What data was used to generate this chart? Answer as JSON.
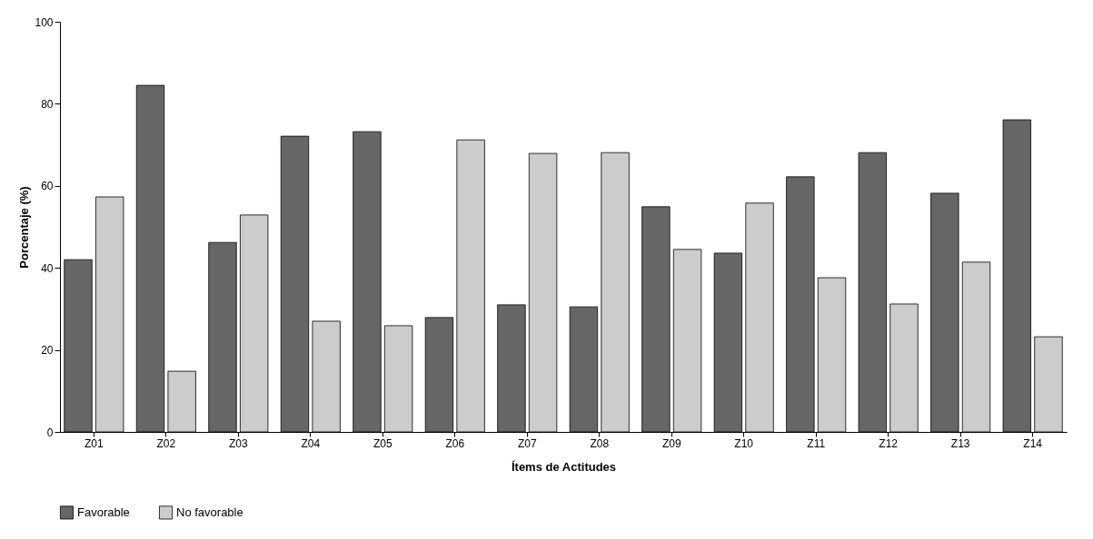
{
  "chart_data": {
    "type": "bar",
    "xlabel": "Ítems de Actitudes",
    "ylabel": "Porcentaje (%)",
    "categories": [
      "Z01",
      "Z02",
      "Z03",
      "Z04",
      "Z05",
      "Z06",
      "Z07",
      "Z08",
      "Z09",
      "Z10",
      "Z11",
      "Z12",
      "Z13",
      "Z14"
    ],
    "series": [
      {
        "name": "Favorable",
        "color": "#666666",
        "values": [
          42,
          84.5,
          46.2,
          72.1,
          73.2,
          27.9,
          31,
          30.5,
          54.9,
          43.6,
          62.2,
          68.1,
          58.2,
          76.1
        ]
      },
      {
        "name": "No favorable",
        "color": "#cccccc",
        "values": [
          57.3,
          14.8,
          52.9,
          27,
          25.9,
          71.2,
          67.9,
          68.1,
          44.5,
          55.8,
          37.6,
          31.2,
          41.4,
          23.2
        ]
      }
    ],
    "ylim": [
      0,
      100
    ],
    "yticks": [
      0,
      20,
      40,
      60,
      80,
      100
    ],
    "grid": false,
    "legend": "bottom"
  }
}
